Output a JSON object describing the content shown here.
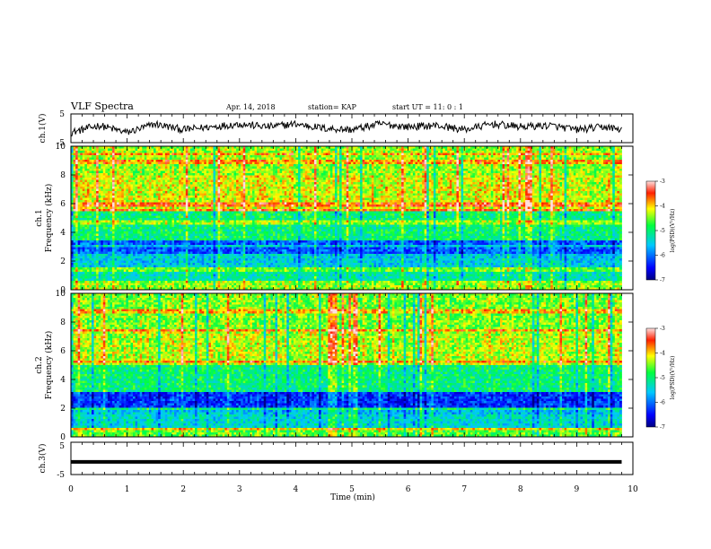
{
  "header": {
    "title": "VLF Spectra",
    "date": "Apr. 14, 2018",
    "station": "station= KAP",
    "start": "start  UT =   11: 0  : 1"
  },
  "chart_data": [
    {
      "type": "line",
      "panel": "waveform-ch1",
      "ylabel": "ch.1(V)",
      "ylim": [
        -5,
        5
      ],
      "yticks": [
        "5",
        "-5"
      ],
      "xlim": [
        0,
        10
      ],
      "x": [
        0,
        0.5,
        1,
        1.5,
        2,
        2.5,
        3,
        3.5,
        4,
        4.5,
        5,
        5.5,
        6,
        6.5,
        7,
        7.5,
        8,
        8.5,
        9,
        9.5,
        9.8
      ],
      "y": [
        -1.5,
        1.0,
        -1.5,
        1.5,
        -0.5,
        0.5,
        1.5,
        0.5,
        1.5,
        0.0,
        -0.5,
        1.5,
        0.5,
        1.0,
        -0.5,
        1.5,
        0.5,
        1.0,
        -0.5,
        0.5,
        -0.5
      ]
    },
    {
      "type": "heatmap",
      "panel": "spectrogram-ch1",
      "ylabel_top": "ch.1",
      "ylabel": "Frequency (kHz)",
      "ylim": [
        0,
        10
      ],
      "yticks": [
        "0",
        "2",
        "4",
        "6",
        "8",
        "10"
      ],
      "xlim": [
        0,
        9.8
      ],
      "colorbar": {
        "label": "log(PSD)(V²/Hz)",
        "range": [
          -7,
          -3
        ],
        "ticks": [
          "-3",
          "-4",
          "-5",
          "-6",
          "-7"
        ]
      },
      "bands_khz": [
        [
          0,
          0.6,
          -4.4
        ],
        [
          0.6,
          1.5,
          -5.2
        ],
        [
          1.5,
          2.2,
          -5.5
        ],
        [
          2.2,
          3.4,
          -6.1
        ],
        [
          3.4,
          5.5,
          -5.0
        ],
        [
          5.5,
          8.0,
          -4.2
        ],
        [
          8.0,
          10,
          -4.4
        ]
      ]
    },
    {
      "type": "heatmap",
      "panel": "spectrogram-ch2",
      "ylabel_top": "ch.2",
      "ylabel": "Frequency (kHz)",
      "ylim": [
        0,
        10
      ],
      "yticks": [
        "0",
        "2",
        "4",
        "6",
        "8",
        "10"
      ],
      "xlim": [
        0,
        9.8
      ],
      "colorbar": {
        "label": "log(PSD)(V²/Hz)",
        "range": [
          -7,
          -3
        ],
        "ticks": [
          "-3",
          "-4",
          "-5",
          "-6",
          "-7"
        ]
      },
      "bands_khz": [
        [
          0,
          0.6,
          -4.6
        ],
        [
          0.6,
          1.5,
          -5.4
        ],
        [
          1.5,
          2.0,
          -5.6
        ],
        [
          2.0,
          3.2,
          -6.3
        ],
        [
          3.2,
          5.0,
          -5.0
        ],
        [
          5.0,
          7.5,
          -4.3
        ],
        [
          7.5,
          10,
          -4.5
        ]
      ]
    },
    {
      "type": "line",
      "panel": "waveform-ch3",
      "ylabel": "ch.3(V)",
      "ylim": [
        -5,
        5
      ],
      "yticks": [
        "5",
        "-5"
      ],
      "xlim": [
        0,
        10
      ],
      "x": [
        0,
        9.8
      ],
      "y": [
        -1.2,
        -1.2
      ]
    }
  ],
  "xaxis": {
    "label": "Time (min)",
    "ticks": [
      "0",
      "1",
      "2",
      "3",
      "4",
      "5",
      "6",
      "7",
      "8",
      "9",
      "10"
    ],
    "range": [
      0,
      10
    ]
  }
}
